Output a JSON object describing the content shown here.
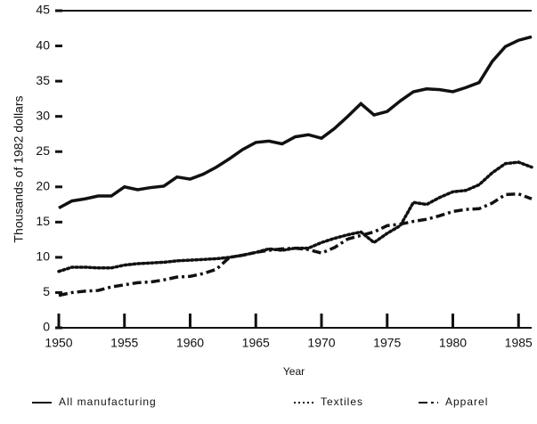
{
  "chart_data": {
    "type": "line",
    "xlabel": "Year",
    "ylabel": "Thousands of 1982 dollars",
    "x": [
      1950,
      1951,
      1952,
      1953,
      1954,
      1955,
      1956,
      1957,
      1958,
      1959,
      1960,
      1961,
      1962,
      1963,
      1964,
      1965,
      1966,
      1967,
      1968,
      1969,
      1970,
      1971,
      1972,
      1973,
      1974,
      1975,
      1976,
      1977,
      1978,
      1979,
      1980,
      1981,
      1982,
      1983,
      1984,
      1985,
      1986
    ],
    "series": [
      {
        "name": "All manufacturing",
        "color": "#111111",
        "style": "solid",
        "values": [
          17,
          18,
          18.3,
          18.7,
          18.7,
          20,
          19.6,
          19.9,
          20.1,
          21.4,
          21.1,
          21.8,
          22.8,
          24,
          25.3,
          26.3,
          26.5,
          26.1,
          27.1,
          27.4,
          26.9,
          28.3,
          30,
          31.8,
          30.2,
          30.7,
          32.2,
          33.5,
          33.9,
          33.8,
          33.5,
          34.1,
          34.8,
          37.8,
          39.9,
          40.8,
          41.3
        ]
      },
      {
        "name": "Textiles",
        "color": "#111111",
        "style": "dotted",
        "values": [
          8,
          8.6,
          8.6,
          8.5,
          8.5,
          8.9,
          9.1,
          9.2,
          9.3,
          9.5,
          9.6,
          9.7,
          9.8,
          10,
          10.3,
          10.7,
          11.2,
          11,
          11.3,
          11.3,
          12.1,
          12.7,
          13.2,
          13.6,
          12.1,
          13.4,
          14.5,
          17.8,
          17.5,
          18.5,
          19.3,
          19.5,
          20.3,
          22,
          23.3,
          23.5,
          22.8
        ]
      },
      {
        "name": "Apparel",
        "color": "#111111",
        "style": "dashdot",
        "values": [
          4.6,
          5,
          5.2,
          5.3,
          5.8,
          6.1,
          6.4,
          6.5,
          6.8,
          7.2,
          7.3,
          7.7,
          8.3,
          10,
          10.3,
          10.7,
          11,
          11.2,
          11.3,
          11.1,
          10.6,
          11.4,
          12.6,
          13.1,
          13.6,
          14.5,
          14.7,
          15.1,
          15.4,
          15.9,
          16.5,
          16.8,
          16.9,
          17.7,
          18.9,
          19,
          18.3
        ]
      }
    ],
    "xlim": [
      1950,
      1986
    ],
    "xticks": [
      1950,
      1955,
      1960,
      1965,
      1970,
      1975,
      1980,
      1985
    ],
    "ylim": [
      0,
      45
    ],
    "yticks": [
      0,
      5,
      10,
      15,
      20,
      25,
      30,
      35,
      40,
      45
    ]
  }
}
